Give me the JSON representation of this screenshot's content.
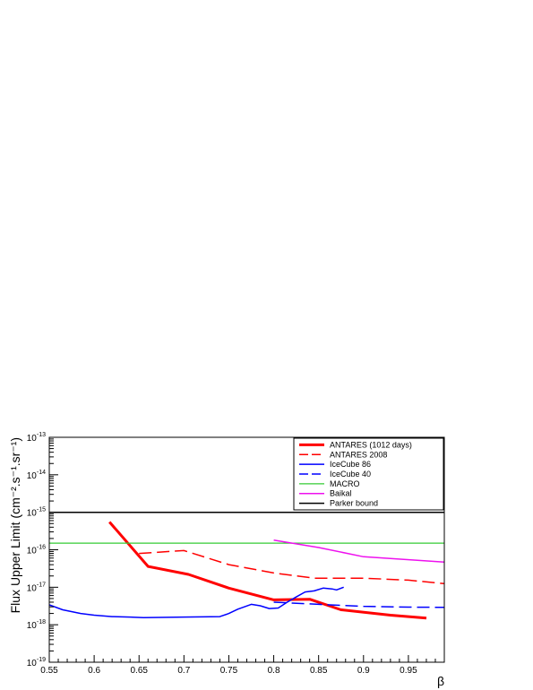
{
  "chart_data": {
    "type": "line",
    "title": "",
    "xlabel": "β",
    "ylabel": "Flux Upper Limit (cm⁻².s⁻¹.sr⁻¹)",
    "xlim": [
      0.55,
      0.99
    ],
    "ylim": [
      1e-19,
      1e-13
    ],
    "yscale": "log",
    "grid": false,
    "legend_position": "top-right",
    "x_ticks": [
      {
        "value": 0.55,
        "label": "0.55"
      },
      {
        "value": 0.6,
        "label": "0.6"
      },
      {
        "value": 0.65,
        "label": "0.65"
      },
      {
        "value": 0.7,
        "label": "0.7"
      },
      {
        "value": 0.75,
        "label": "0.75"
      },
      {
        "value": 0.8,
        "label": "0.8"
      },
      {
        "value": 0.85,
        "label": "0.85"
      },
      {
        "value": 0.9,
        "label": "0.9"
      },
      {
        "value": 0.95,
        "label": "0.95"
      }
    ],
    "y_ticks": [
      {
        "value": 1e-19,
        "base": "10",
        "exp": "-19"
      },
      {
        "value": 1e-18,
        "base": "10",
        "exp": "-18"
      },
      {
        "value": 1e-17,
        "base": "10",
        "exp": "-17"
      },
      {
        "value": 1e-16,
        "base": "10",
        "exp": "-16"
      },
      {
        "value": 1e-15,
        "base": "10",
        "exp": "-15"
      },
      {
        "value": 1e-14,
        "base": "10",
        "exp": "-14"
      },
      {
        "value": 1e-13,
        "base": "10",
        "exp": "-13"
      }
    ],
    "series": [
      {
        "name": "ANTARES (1012 days)",
        "color": "#ff0000",
        "dash": "solid",
        "width": 3,
        "points": [
          [
            0.617,
            5.5e-16
          ],
          [
            0.66,
            3.6e-17
          ],
          [
            0.705,
            2.2e-17
          ],
          [
            0.75,
            9.5e-18
          ],
          [
            0.8,
            4.6e-18
          ],
          [
            0.84,
            4.8e-18
          ],
          [
            0.875,
            2.5e-18
          ],
          [
            0.93,
            1.8e-18
          ],
          [
            0.97,
            1.5e-18
          ]
        ]
      },
      {
        "name": "ANTARES 2008",
        "color": "#ff0000",
        "dash": "dashed",
        "width": 1.5,
        "points": [
          [
            0.65,
            8e-17
          ],
          [
            0.7,
            9.5e-17
          ],
          [
            0.75,
            4e-17
          ],
          [
            0.8,
            2.4e-17
          ],
          [
            0.845,
            1.75e-17
          ],
          [
            0.9,
            1.75e-17
          ],
          [
            0.95,
            1.55e-17
          ],
          [
            0.99,
            1.25e-17
          ]
        ]
      },
      {
        "name": "IceCube 86",
        "color": "#0000ff",
        "dash": "solid",
        "width": 1.5,
        "points": [
          [
            0.55,
            3.4e-18
          ],
          [
            0.565,
            2.5e-18
          ],
          [
            0.585,
            2e-18
          ],
          [
            0.6,
            1.8e-18
          ],
          [
            0.62,
            1.65e-18
          ],
          [
            0.64,
            1.6e-18
          ],
          [
            0.655,
            1.55e-18
          ],
          [
            0.7,
            1.6e-18
          ],
          [
            0.74,
            1.65e-18
          ],
          [
            0.75,
            2e-18
          ],
          [
            0.76,
            2.6e-18
          ],
          [
            0.775,
            3.5e-18
          ],
          [
            0.785,
            3.2e-18
          ],
          [
            0.795,
            2.7e-18
          ],
          [
            0.805,
            2.8e-18
          ],
          [
            0.815,
            4e-18
          ],
          [
            0.825,
            5.5e-18
          ],
          [
            0.835,
            7.5e-18
          ],
          [
            0.845,
            8e-18
          ],
          [
            0.855,
            9.5e-18
          ],
          [
            0.865,
            9e-18
          ],
          [
            0.87,
            8.5e-18
          ],
          [
            0.878,
            1e-17
          ]
        ]
      },
      {
        "name": "IceCube 40",
        "color": "#0000ff",
        "dash": "dashed",
        "width": 1.5,
        "points": [
          [
            0.8,
            4e-18
          ],
          [
            0.85,
            3.5e-18
          ],
          [
            0.9,
            3.1e-18
          ],
          [
            0.95,
            2.95e-18
          ],
          [
            0.99,
            2.9e-18
          ]
        ]
      },
      {
        "name": "MACRO",
        "color": "#33cc33",
        "dash": "solid",
        "width": 1.2,
        "points": [
          [
            0.55,
            1.5e-16
          ],
          [
            0.99,
            1.5e-16
          ]
        ]
      },
      {
        "name": "Baikal",
        "color": "#ee11ee",
        "dash": "solid",
        "width": 1.5,
        "points": [
          [
            0.8,
            1.8e-16
          ],
          [
            0.85,
            1.15e-16
          ],
          [
            0.9,
            6.5e-17
          ],
          [
            0.99,
            4.7e-17
          ]
        ]
      },
      {
        "name": "Parker bound",
        "color": "#000000",
        "dash": "solid",
        "width": 1.5,
        "points": [
          [
            0.55,
            1e-15
          ],
          [
            0.99,
            1e-15
          ]
        ]
      }
    ]
  }
}
